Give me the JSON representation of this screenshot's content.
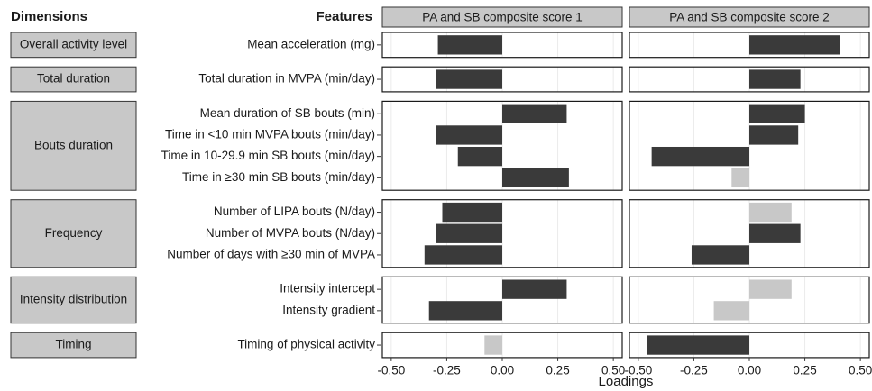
{
  "chart_data": {
    "type": "bar",
    "orientation": "horizontal",
    "dimensions_header": "Dimensions",
    "features_header": "Features",
    "xlabel": "Loadings",
    "groups": [
      {
        "label": "Overall activity level",
        "categories": [
          "Mean acceleration (mg)"
        ]
      },
      {
        "label": "Total duration",
        "categories": [
          "Total duration in MVPA (min/day)"
        ]
      },
      {
        "label": "Bouts duration",
        "categories": [
          "Mean duration of SB bouts (min)",
          "Time in <10 min MVPA bouts (min/day)",
          "Time in 10-29.9 min SB bouts (min/day)",
          "Time in ≥30 min SB bouts (min/day)"
        ]
      },
      {
        "label": "Frequency",
        "categories": [
          "Number of LIPA bouts (N/day)",
          "Number of MVPA bouts (N/day)",
          "Number of days with ≥30 min of MVPA"
        ]
      },
      {
        "label": "Intensity distribution",
        "categories": [
          "Intensity intercept",
          "Intensity gradient"
        ]
      },
      {
        "label": "Timing",
        "categories": [
          "Timing of physical activity"
        ]
      }
    ],
    "series": [
      {
        "name": "PA and SB composite score 1",
        "values": [
          -0.29,
          -0.3,
          0.29,
          -0.3,
          -0.2,
          0.3,
          -0.27,
          -0.3,
          -0.35,
          0.29,
          -0.33,
          -0.08
        ],
        "colors": [
          "#3a3a3a",
          "#3a3a3a",
          "#3a3a3a",
          "#3a3a3a",
          "#3a3a3a",
          "#3a3a3a",
          "#3a3a3a",
          "#3a3a3a",
          "#3a3a3a",
          "#3a3a3a",
          "#3a3a3a",
          "#c8c8c8"
        ]
      },
      {
        "name": "PA and SB composite score 2",
        "values": [
          0.41,
          0.23,
          0.25,
          0.22,
          -0.44,
          -0.08,
          0.19,
          0.23,
          -0.26,
          0.19,
          -0.16,
          -0.46
        ],
        "colors": [
          "#3a3a3a",
          "#3a3a3a",
          "#3a3a3a",
          "#3a3a3a",
          "#3a3a3a",
          "#c8c8c8",
          "#c8c8c8",
          "#3a3a3a",
          "#3a3a3a",
          "#c8c8c8",
          "#c8c8c8",
          "#3a3a3a"
        ]
      }
    ],
    "xlim": [
      -0.54,
      0.54
    ],
    "xticks": [
      {
        "value": -0.5,
        "label": "-0.50"
      },
      {
        "value": -0.25,
        "label": "-0.25"
      },
      {
        "value": 0,
        "label": "0.00"
      },
      {
        "value": 0.25,
        "label": "0.25"
      },
      {
        "value": 0.5,
        "label": "0.50"
      }
    ],
    "grid": true
  }
}
